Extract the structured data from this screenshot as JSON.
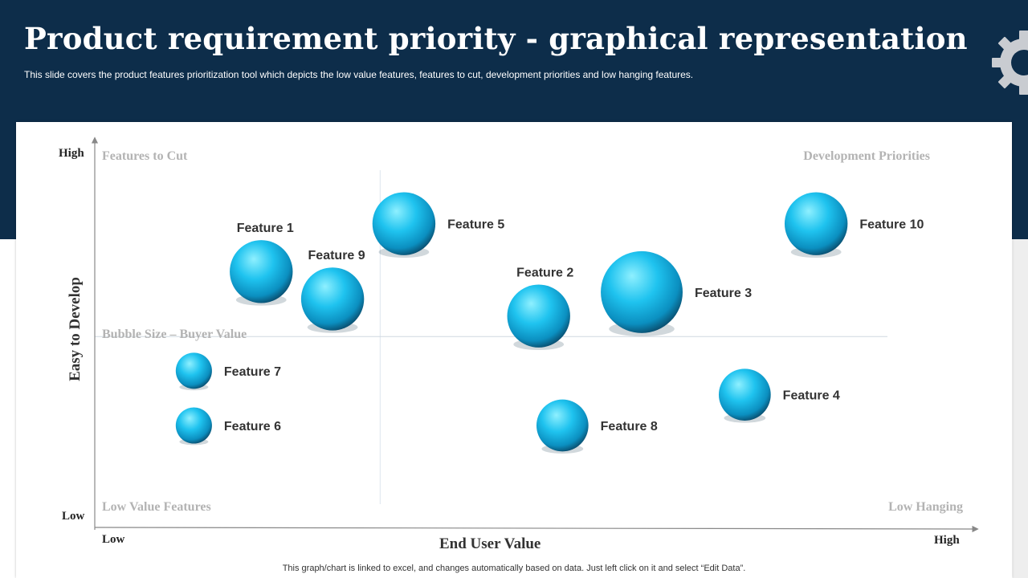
{
  "header": {
    "title": "Product requirement priority - graphical representation",
    "subtitle": "This slide covers the product features prioritization tool which depicts the low value features, features to cut,  development priorities and low hanging features."
  },
  "icons": {
    "decoration": "gear-icon"
  },
  "colors": {
    "header_bg": "#0d2d4a",
    "bubble_light": "#7fe8ff",
    "bubble_mid": "#14b4e6",
    "bubble_dark": "#0a5f82",
    "quadrant_text": "#b3b3b3"
  },
  "chart_data": {
    "type": "scatter",
    "subtype": "bubble",
    "title": "",
    "xlabel": "End User Value",
    "ylabel": "Easy to Develop",
    "x_ticks": {
      "low": "Low",
      "high": "High"
    },
    "y_ticks": {
      "low": "Low",
      "high": "High"
    },
    "xlim": [
      0,
      10
    ],
    "ylim": [
      0,
      10
    ],
    "divider": {
      "x": 3.6,
      "y": 4.9
    },
    "quadrants": {
      "top_left": "Features to Cut",
      "top_right": "Development Priorities",
      "bottom_left": "Low Value Features",
      "bottom_right": "Low Hanging"
    },
    "size_note": "Bubble Size – Buyer Value",
    "points": [
      {
        "name": "Feature 1",
        "x": 2.1,
        "y": 6.8,
        "size": 4.0
      },
      {
        "name": "Feature 2",
        "x": 5.6,
        "y": 5.5,
        "size": 4.0
      },
      {
        "name": "Feature 3",
        "x": 6.9,
        "y": 6.2,
        "size": 5.2
      },
      {
        "name": "Feature 4",
        "x": 8.2,
        "y": 3.2,
        "size": 3.3
      },
      {
        "name": "Feature 5",
        "x": 3.9,
        "y": 8.2,
        "size": 4.0
      },
      {
        "name": "Feature 6",
        "x": 1.25,
        "y": 2.3,
        "size": 2.3
      },
      {
        "name": "Feature 7",
        "x": 1.25,
        "y": 3.9,
        "size": 2.3
      },
      {
        "name": "Feature 8",
        "x": 5.9,
        "y": 2.3,
        "size": 3.3
      },
      {
        "name": "Feature 9",
        "x": 3.0,
        "y": 6.0,
        "size": 4.0
      },
      {
        "name": "Feature 10",
        "x": 9.1,
        "y": 8.2,
        "size": 4.0
      }
    ]
  },
  "footnote": "This graph/chart is linked to excel,  and changes automatically based on data. Just left click on it and select “Edit Data”."
}
